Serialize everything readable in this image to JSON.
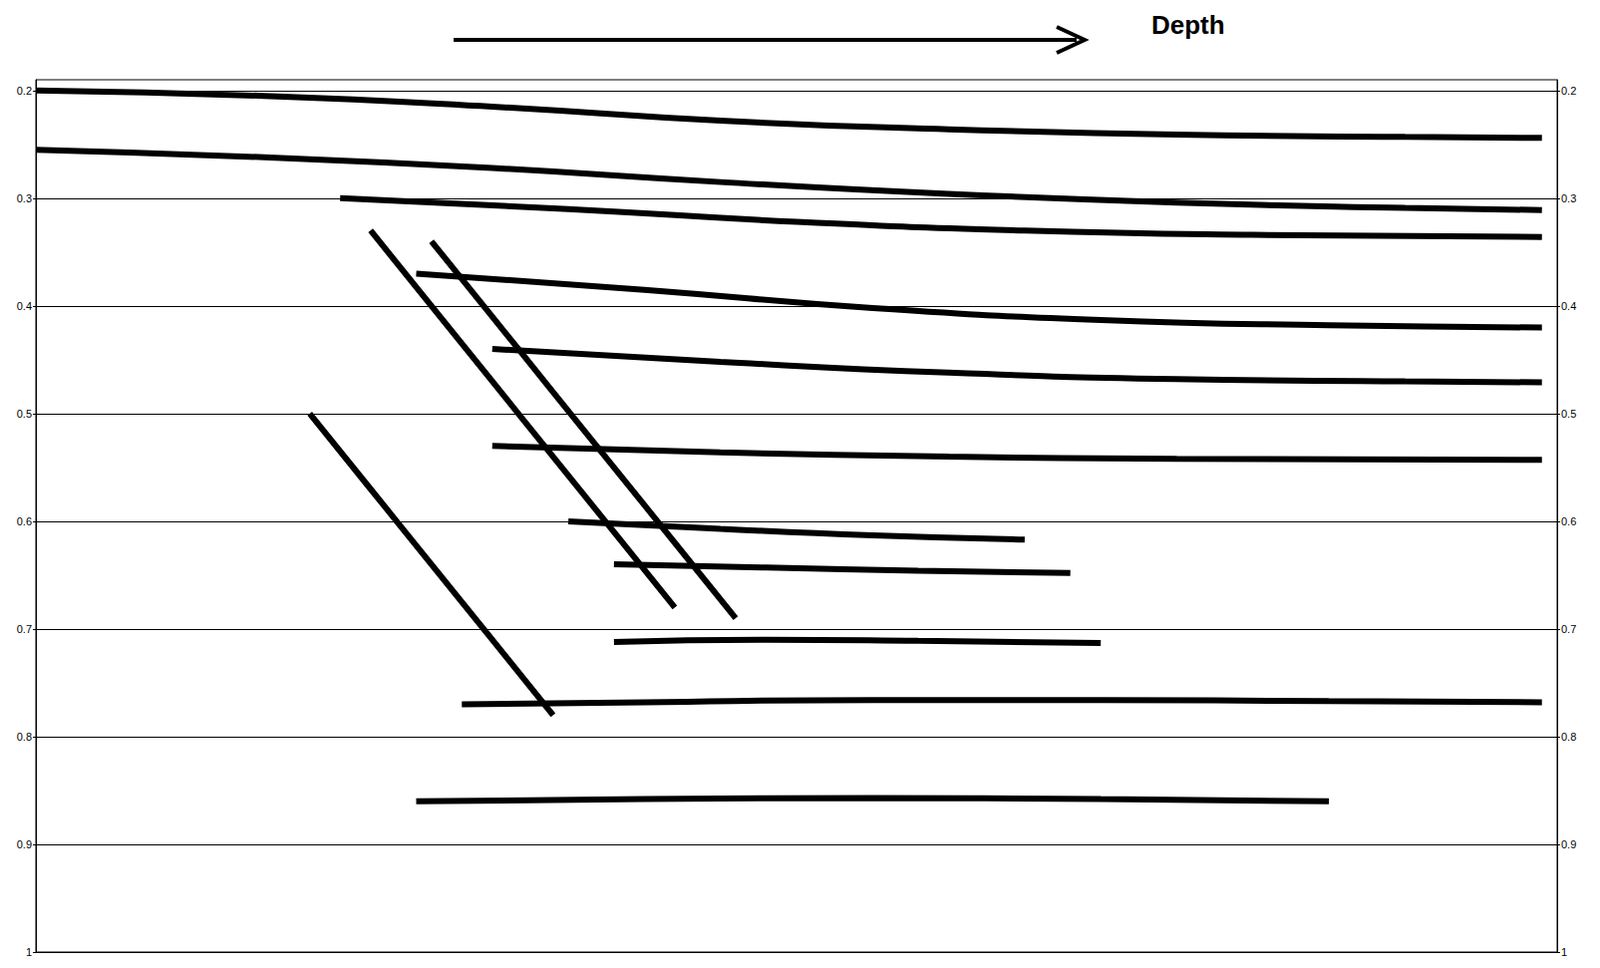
{
  "chart_data": {
    "type": "line",
    "annotation": "Depth",
    "color": "#000000",
    "xlim": [
      0,
      100
    ],
    "ylim": [
      0.19,
      1
    ],
    "yticks": [
      0.2,
      0.3,
      0.4,
      0.5,
      0.6,
      0.7,
      0.8,
      0.9,
      1
    ],
    "grid": true,
    "tick_labels": "y",
    "series": [
      {
        "x": [
          0,
          15,
          30,
          45,
          60,
          75,
          90,
          99
        ],
        "values": [
          0.2,
          0.205,
          0.215,
          0.228,
          0.236,
          0.241,
          0.243,
          0.244
        ]
      },
      {
        "x": [
          0,
          15,
          30,
          45,
          60,
          75,
          90,
          99
        ],
        "values": [
          0.255,
          0.262,
          0.272,
          0.285,
          0.296,
          0.304,
          0.309,
          0.311
        ]
      },
      {
        "x": [
          20,
          35,
          50,
          65,
          80,
          99
        ],
        "values": [
          0.3,
          0.31,
          0.322,
          0.33,
          0.334,
          0.336
        ]
      },
      {
        "x": [
          25,
          40,
          55,
          70,
          85,
          99
        ],
        "values": [
          0.37,
          0.385,
          0.402,
          0.413,
          0.418,
          0.42
        ]
      },
      {
        "x": [
          30,
          45,
          60,
          75,
          90,
          99
        ],
        "values": [
          0.44,
          0.452,
          0.462,
          0.468,
          0.47,
          0.471
        ]
      },
      {
        "x": [
          30,
          45,
          60,
          75,
          99
        ],
        "values": [
          0.53,
          0.536,
          0.54,
          0.542,
          0.543
        ]
      },
      {
        "x": [
          35,
          45,
          55,
          65
        ],
        "values": [
          0.6,
          0.607,
          0.613,
          0.617
        ]
      },
      {
        "x": [
          38,
          48,
          58,
          68
        ],
        "values": [
          0.64,
          0.643,
          0.646,
          0.648
        ]
      },
      {
        "x": [
          38,
          48,
          58,
          70
        ],
        "values": [
          0.712,
          0.71,
          0.711,
          0.713
        ]
      },
      {
        "x": [
          28,
          40,
          55,
          70,
          85,
          99
        ],
        "values": [
          0.77,
          0.768,
          0.766,
          0.766,
          0.767,
          0.768
        ]
      },
      {
        "x": [
          25,
          40,
          55,
          70,
          85
        ],
        "values": [
          0.86,
          0.858,
          0.857,
          0.858,
          0.86
        ]
      },
      {
        "x": [
          22,
          26,
          30,
          34,
          38,
          42
        ],
        "values": [
          0.33,
          0.4,
          0.47,
          0.54,
          0.61,
          0.68
        ]
      },
      {
        "x": [
          26,
          30,
          34,
          38,
          42,
          46
        ],
        "values": [
          0.34,
          0.41,
          0.48,
          0.55,
          0.62,
          0.69
        ]
      },
      {
        "x": [
          18,
          22,
          26,
          30,
          34
        ],
        "values": [
          0.5,
          0.57,
          0.64,
          0.71,
          0.78
        ]
      }
    ]
  }
}
